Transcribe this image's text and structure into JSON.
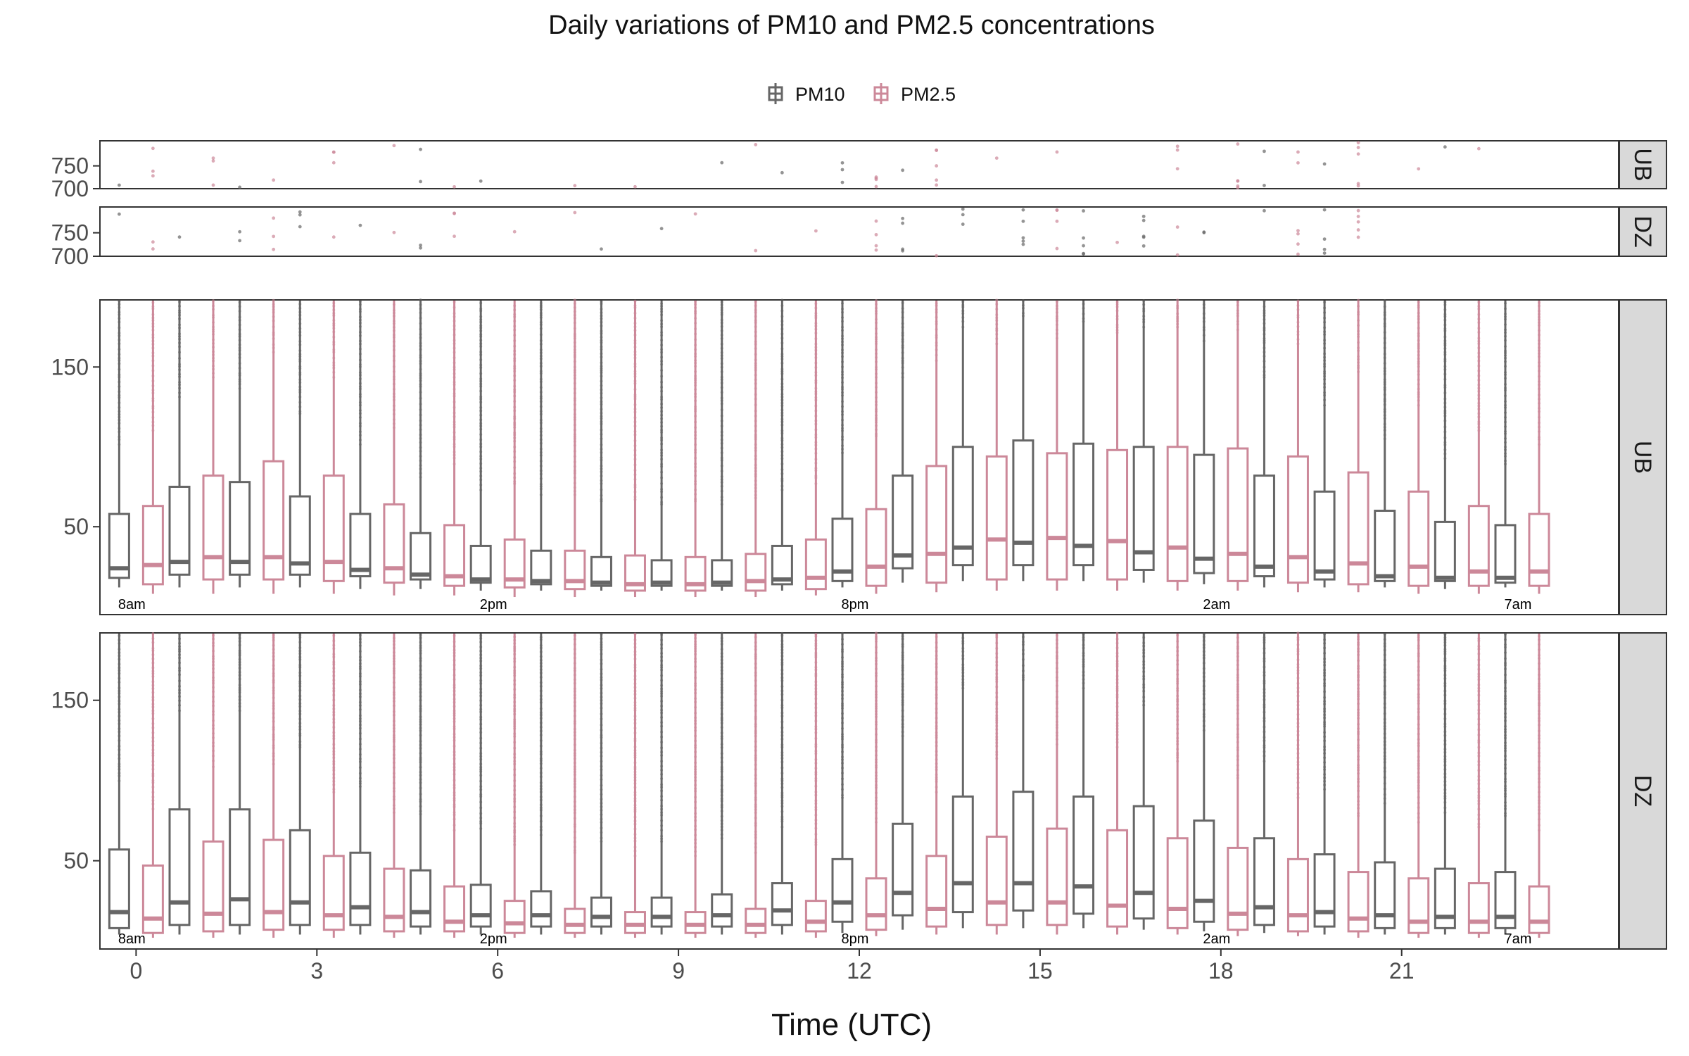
{
  "chart_data": {
    "type": "boxplot",
    "title": "Daily variations of PM10 and PM2.5 concentrations",
    "xlabel": "Time (UTC)",
    "x_ticks": [
      0,
      3,
      6,
      9,
      12,
      15,
      18,
      21
    ],
    "legend": {
      "position": "top",
      "entries": [
        {
          "name": "PM10",
          "color": "#666666"
        },
        {
          "name": "PM2.5",
          "color": "#cc8899"
        }
      ]
    },
    "local_time_labels": [
      {
        "hour": 0,
        "label": "8am"
      },
      {
        "hour": 6,
        "label": "2pm"
      },
      {
        "hour": 12,
        "label": "8pm"
      },
      {
        "hour": 18,
        "label": "2am"
      },
      {
        "hour": 23,
        "label": "7am"
      }
    ],
    "strips": [
      "UB",
      "DZ",
      "UB",
      "DZ"
    ],
    "outlier_panels": [
      {
        "site": "UB",
        "y_ticks": [
          700,
          750
        ],
        "ylim": [
          700,
          805
        ]
      },
      {
        "site": "DZ",
        "y_ticks": [
          700,
          750
        ],
        "ylim": [
          700,
          805
        ]
      }
    ],
    "main_panels": [
      {
        "site": "UB",
        "y_ticks": [
          50,
          150
        ],
        "ylim": [
          -5,
          192
        ],
        "series": [
          {
            "name": "PM10",
            "boxes": [
              {
                "hour": 0,
                "lower": 12,
                "q1": 18,
                "median": 24,
                "q3": 58
              },
              {
                "hour": 1,
                "lower": 12,
                "q1": 20,
                "median": 28,
                "q3": 75
              },
              {
                "hour": 2,
                "lower": 12,
                "q1": 20,
                "median": 28,
                "q3": 78
              },
              {
                "hour": 3,
                "lower": 12,
                "q1": 20,
                "median": 27,
                "q3": 69
              },
              {
                "hour": 4,
                "lower": 11,
                "q1": 19,
                "median": 23,
                "q3": 58
              },
              {
                "hour": 5,
                "lower": 11,
                "q1": 17,
                "median": 20,
                "q3": 46
              },
              {
                "hour": 6,
                "lower": 10,
                "q1": 15,
                "median": 17,
                "q3": 38
              },
              {
                "hour": 7,
                "lower": 10,
                "q1": 14,
                "median": 16,
                "q3": 35
              },
              {
                "hour": 8,
                "lower": 10,
                "q1": 13,
                "median": 15,
                "q3": 31
              },
              {
                "hour": 9,
                "lower": 10,
                "q1": 13,
                "median": 15,
                "q3": 29
              },
              {
                "hour": 10,
                "lower": 10,
                "q1": 13,
                "median": 15,
                "q3": 29
              },
              {
                "hour": 11,
                "lower": 10,
                "q1": 14,
                "median": 17,
                "q3": 38
              },
              {
                "hour": 12,
                "lower": 12,
                "q1": 16,
                "median": 22,
                "q3": 55
              },
              {
                "hour": 13,
                "lower": 15,
                "q1": 24,
                "median": 32,
                "q3": 82
              },
              {
                "hour": 14,
                "lower": 16,
                "q1": 26,
                "median": 37,
                "q3": 100
              },
              {
                "hour": 15,
                "lower": 16,
                "q1": 26,
                "median": 40,
                "q3": 104
              },
              {
                "hour": 16,
                "lower": 16,
                "q1": 26,
                "median": 38,
                "q3": 102
              },
              {
                "hour": 17,
                "lower": 15,
                "q1": 23,
                "median": 34,
                "q3": 100
              },
              {
                "hour": 18,
                "lower": 14,
                "q1": 21,
                "median": 30,
                "q3": 95
              },
              {
                "hour": 19,
                "lower": 12,
                "q1": 19,
                "median": 25,
                "q3": 82
              },
              {
                "hour": 20,
                "lower": 12,
                "q1": 17,
                "median": 22,
                "q3": 72
              },
              {
                "hour": 21,
                "lower": 12,
                "q1": 16,
                "median": 19,
                "q3": 60
              },
              {
                "hour": 22,
                "lower": 11,
                "q1": 16,
                "median": 18,
                "q3": 53
              },
              {
                "hour": 23,
                "lower": 12,
                "q1": 15,
                "median": 18,
                "q3": 51
              }
            ]
          },
          {
            "name": "PM2.5",
            "boxes": [
              {
                "hour": 0,
                "lower": 8,
                "q1": 14,
                "median": 26,
                "q3": 63
              },
              {
                "hour": 1,
                "lower": 8,
                "q1": 17,
                "median": 31,
                "q3": 82
              },
              {
                "hour": 2,
                "lower": 8,
                "q1": 17,
                "median": 31,
                "q3": 91
              },
              {
                "hour": 3,
                "lower": 8,
                "q1": 16,
                "median": 28,
                "q3": 82
              },
              {
                "hour": 4,
                "lower": 7,
                "q1": 15,
                "median": 24,
                "q3": 64
              },
              {
                "hour": 5,
                "lower": 7,
                "q1": 13,
                "median": 19,
                "q3": 51
              },
              {
                "hour": 6,
                "lower": 6,
                "q1": 12,
                "median": 17,
                "q3": 42
              },
              {
                "hour": 7,
                "lower": 6,
                "q1": 11,
                "median": 16,
                "q3": 35
              },
              {
                "hour": 8,
                "lower": 6,
                "q1": 10,
                "median": 14,
                "q3": 32
              },
              {
                "hour": 9,
                "lower": 6,
                "q1": 10,
                "median": 14,
                "q3": 31
              },
              {
                "hour": 10,
                "lower": 6,
                "q1": 10,
                "median": 16,
                "q3": 33
              },
              {
                "hour": 11,
                "lower": 7,
                "q1": 11,
                "median": 18,
                "q3": 42
              },
              {
                "hour": 12,
                "lower": 8,
                "q1": 13,
                "median": 25,
                "q3": 61
              },
              {
                "hour": 13,
                "lower": 9,
                "q1": 15,
                "median": 33,
                "q3": 88
              },
              {
                "hour": 14,
                "lower": 10,
                "q1": 17,
                "median": 42,
                "q3": 94
              },
              {
                "hour": 15,
                "lower": 10,
                "q1": 17,
                "median": 43,
                "q3": 96
              },
              {
                "hour": 16,
                "lower": 10,
                "q1": 17,
                "median": 41,
                "q3": 98
              },
              {
                "hour": 17,
                "lower": 10,
                "q1": 16,
                "median": 37,
                "q3": 100
              },
              {
                "hour": 18,
                "lower": 10,
                "q1": 16,
                "median": 33,
                "q3": 99
              },
              {
                "hour": 19,
                "lower": 9,
                "q1": 15,
                "median": 31,
                "q3": 94
              },
              {
                "hour": 20,
                "lower": 9,
                "q1": 14,
                "median": 27,
                "q3": 84
              },
              {
                "hour": 21,
                "lower": 8,
                "q1": 13,
                "median": 25,
                "q3": 72
              },
              {
                "hour": 22,
                "lower": 8,
                "q1": 13,
                "median": 22,
                "q3": 63
              },
              {
                "hour": 23,
                "lower": 8,
                "q1": 13,
                "median": 22,
                "q3": 58
              }
            ]
          }
        ]
      },
      {
        "site": "DZ",
        "y_ticks": [
          50,
          150
        ],
        "ylim": [
          -5,
          192
        ],
        "series": [
          {
            "name": "PM10",
            "boxes": [
              {
                "hour": 0,
                "lower": 4,
                "q1": 8,
                "median": 18,
                "q3": 57
              },
              {
                "hour": 1,
                "lower": 4,
                "q1": 10,
                "median": 24,
                "q3": 82
              },
              {
                "hour": 2,
                "lower": 4,
                "q1": 10,
                "median": 26,
                "q3": 82
              },
              {
                "hour": 3,
                "lower": 4,
                "q1": 10,
                "median": 24,
                "q3": 69
              },
              {
                "hour": 4,
                "lower": 4,
                "q1": 10,
                "median": 21,
                "q3": 55
              },
              {
                "hour": 5,
                "lower": 4,
                "q1": 9,
                "median": 18,
                "q3": 44
              },
              {
                "hour": 6,
                "lower": 4,
                "q1": 9,
                "median": 16,
                "q3": 35
              },
              {
                "hour": 7,
                "lower": 4,
                "q1": 9,
                "median": 16,
                "q3": 31
              },
              {
                "hour": 8,
                "lower": 4,
                "q1": 9,
                "median": 15,
                "q3": 27
              },
              {
                "hour": 9,
                "lower": 4,
                "q1": 9,
                "median": 15,
                "q3": 27
              },
              {
                "hour": 10,
                "lower": 4,
                "q1": 9,
                "median": 16,
                "q3": 29
              },
              {
                "hour": 11,
                "lower": 4,
                "q1": 10,
                "median": 19,
                "q3": 36
              },
              {
                "hour": 12,
                "lower": 5,
                "q1": 12,
                "median": 24,
                "q3": 51
              },
              {
                "hour": 13,
                "lower": 7,
                "q1": 16,
                "median": 30,
                "q3": 73
              },
              {
                "hour": 14,
                "lower": 8,
                "q1": 18,
                "median": 36,
                "q3": 90
              },
              {
                "hour": 15,
                "lower": 8,
                "q1": 19,
                "median": 36,
                "q3": 93
              },
              {
                "hour": 16,
                "lower": 8,
                "q1": 17,
                "median": 34,
                "q3": 90
              },
              {
                "hour": 17,
                "lower": 7,
                "q1": 14,
                "median": 30,
                "q3": 84
              },
              {
                "hour": 18,
                "lower": 6,
                "q1": 12,
                "median": 25,
                "q3": 75
              },
              {
                "hour": 19,
                "lower": 5,
                "q1": 10,
                "median": 21,
                "q3": 64
              },
              {
                "hour": 20,
                "lower": 4,
                "q1": 9,
                "median": 18,
                "q3": 54
              },
              {
                "hour": 21,
                "lower": 4,
                "q1": 8,
                "median": 16,
                "q3": 49
              },
              {
                "hour": 22,
                "lower": 4,
                "q1": 8,
                "median": 15,
                "q3": 45
              },
              {
                "hour": 23,
                "lower": 4,
                "q1": 8,
                "median": 15,
                "q3": 43
              }
            ]
          },
          {
            "name": "PM2.5",
            "boxes": [
              {
                "hour": 0,
                "lower": 2,
                "q1": 5,
                "median": 14,
                "q3": 47
              },
              {
                "hour": 1,
                "lower": 2,
                "q1": 6,
                "median": 17,
                "q3": 62
              },
              {
                "hour": 2,
                "lower": 2,
                "q1": 7,
                "median": 18,
                "q3": 63
              },
              {
                "hour": 3,
                "lower": 2,
                "q1": 7,
                "median": 16,
                "q3": 53
              },
              {
                "hour": 4,
                "lower": 2,
                "q1": 6,
                "median": 15,
                "q3": 45
              },
              {
                "hour": 5,
                "lower": 2,
                "q1": 6,
                "median": 12,
                "q3": 34
              },
              {
                "hour": 6,
                "lower": 2,
                "q1": 5,
                "median": 11,
                "q3": 25
              },
              {
                "hour": 7,
                "lower": 2,
                "q1": 5,
                "median": 10,
                "q3": 20
              },
              {
                "hour": 8,
                "lower": 2,
                "q1": 5,
                "median": 10,
                "q3": 18
              },
              {
                "hour": 9,
                "lower": 2,
                "q1": 5,
                "median": 10,
                "q3": 18
              },
              {
                "hour": 10,
                "lower": 2,
                "q1": 5,
                "median": 10,
                "q3": 20
              },
              {
                "hour": 11,
                "lower": 2,
                "q1": 6,
                "median": 12,
                "q3": 25
              },
              {
                "hour": 12,
                "lower": 3,
                "q1": 7,
                "median": 16,
                "q3": 39
              },
              {
                "hour": 13,
                "lower": 4,
                "q1": 9,
                "median": 20,
                "q3": 53
              },
              {
                "hour": 14,
                "lower": 4,
                "q1": 10,
                "median": 24,
                "q3": 65
              },
              {
                "hour": 15,
                "lower": 4,
                "q1": 10,
                "median": 24,
                "q3": 70
              },
              {
                "hour": 16,
                "lower": 4,
                "q1": 9,
                "median": 22,
                "q3": 69
              },
              {
                "hour": 17,
                "lower": 4,
                "q1": 8,
                "median": 20,
                "q3": 64
              },
              {
                "hour": 18,
                "lower": 3,
                "q1": 7,
                "median": 17,
                "q3": 58
              },
              {
                "hour": 19,
                "lower": 3,
                "q1": 6,
                "median": 16,
                "q3": 51
              },
              {
                "hour": 20,
                "lower": 2,
                "q1": 6,
                "median": 14,
                "q3": 43
              },
              {
                "hour": 21,
                "lower": 2,
                "q1": 5,
                "median": 12,
                "q3": 39
              },
              {
                "hour": 22,
                "lower": 2,
                "q1": 5,
                "median": 12,
                "q3": 36
              },
              {
                "hour": 23,
                "lower": 2,
                "q1": 5,
                "median": 12,
                "q3": 34
              }
            ]
          }
        ]
      }
    ]
  }
}
